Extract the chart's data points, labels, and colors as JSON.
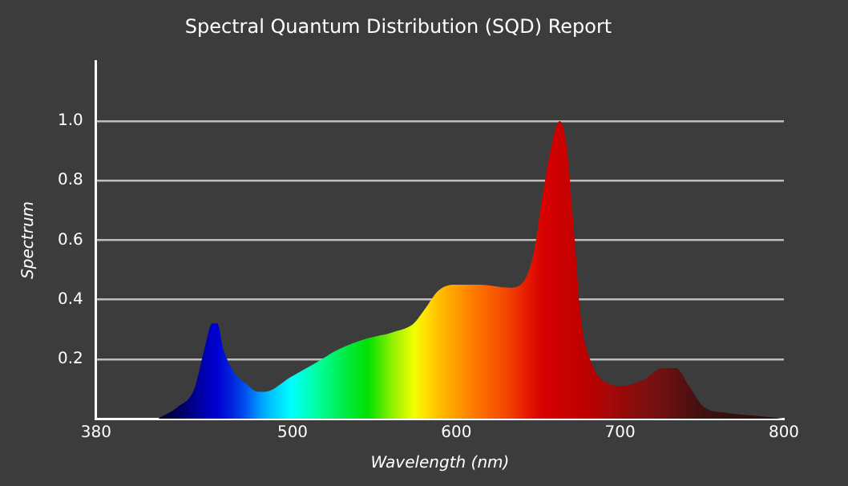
{
  "chart_data": {
    "type": "area",
    "title": "Spectral Quantum Distribution (SQD) Report",
    "xlabel": "Wavelength (nm)",
    "ylabel": "Spectrum",
    "x": [
      418,
      430,
      440,
      446,
      451,
      454,
      458,
      465,
      471,
      479,
      483,
      499,
      515,
      527,
      546,
      561,
      574,
      581,
      589,
      599,
      614,
      633,
      641,
      647,
      653,
      659,
      663,
      667,
      672,
      676,
      683,
      692,
      701,
      714,
      726,
      734,
      742,
      751,
      764,
      782,
      800
    ],
    "values": [
      0.0,
      0.04,
      0.1,
      0.23,
      0.32,
      0.32,
      0.23,
      0.15,
      0.12,
      0.09,
      0.09,
      0.14,
      0.19,
      0.23,
      0.27,
      0.29,
      0.32,
      0.37,
      0.43,
      0.45,
      0.45,
      0.44,
      0.46,
      0.55,
      0.76,
      0.94,
      1.0,
      0.93,
      0.62,
      0.34,
      0.18,
      0.12,
      0.11,
      0.13,
      0.17,
      0.17,
      0.11,
      0.04,
      0.02,
      0.01,
      0.0
    ],
    "colors": [
      "#000033",
      "#00005a",
      "#000090",
      "#0000b0",
      "#0000c8",
      "#0000d0",
      "#0010d8",
      "#0030e0",
      "#0050f0",
      "#0090ff",
      "#00b0ff",
      "#00ffff",
      "#00ffa0",
      "#00f060",
      "#00e000",
      "#90f000",
      "#f0ff00",
      "#ffe000",
      "#ffc000",
      "#ffa000",
      "#ff7000",
      "#f04000",
      "#e82000",
      "#e01000",
      "#d80000",
      "#d00000",
      "#cc0000",
      "#c80000",
      "#c40000",
      "#c00000",
      "#b80000",
      "#a80808",
      "#980808",
      "#801010",
      "#701010",
      "#601010",
      "#501010",
      "#401010",
      "#381010",
      "#301010",
      "#281010"
    ],
    "xlim": [
      380,
      800
    ],
    "xticks": [
      380,
      500,
      600,
      700,
      800
    ],
    "ylim": [
      0,
      1.2
    ],
    "yticks": [
      0.2,
      0.4,
      0.6,
      0.8,
      {
        "value": 1,
        "label": "1.0"
      }
    ],
    "grid": "y"
  }
}
